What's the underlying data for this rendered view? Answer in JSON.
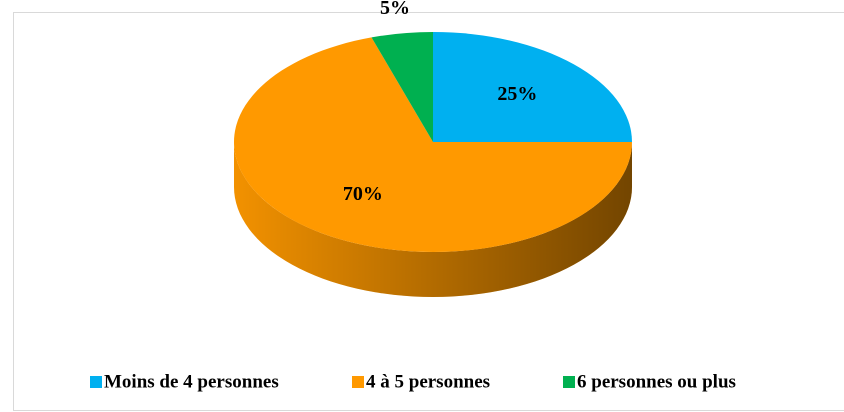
{
  "chart_data": {
    "type": "pie",
    "categories": [
      "Moins de 4 personnes",
      "4 à 5 personnes",
      "6 personnes ou plus"
    ],
    "values": [
      25,
      70,
      5
    ],
    "value_labels": [
      "25%",
      "70%",
      "5%"
    ],
    "colors": [
      "#00b0f0",
      "#ff9900",
      "#00b050"
    ],
    "legend": "bottom"
  }
}
